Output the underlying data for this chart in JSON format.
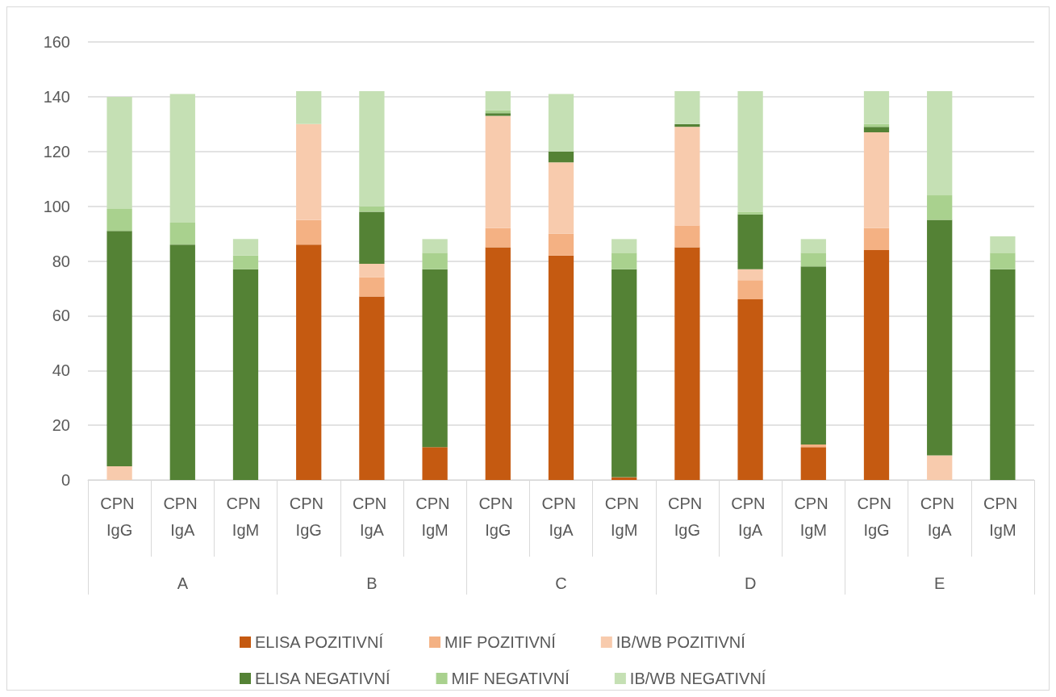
{
  "chart_data": {
    "type": "bar",
    "stacked": true,
    "categories": [
      "CPN IgG",
      "CPN IgA",
      "CPN IgM",
      "CPN IgG",
      "CPN IgA",
      "CPN IgM",
      "CPN IgG",
      "CPN IgA",
      "CPN IgM",
      "CPN IgG",
      "CPN IgA",
      "CPN IgM",
      "CPN IgG",
      "CPN IgA",
      "CPN IgM"
    ],
    "annotations": [
      "A",
      "B",
      "C",
      "D",
      "E"
    ],
    "series": [
      {
        "name": "ELISA POZITIVNÍ",
        "color": "#c55a11",
        "values": [
          0,
          0,
          0,
          86,
          67,
          12,
          85,
          82,
          1,
          85,
          66,
          12,
          84,
          0,
          0
        ]
      },
      {
        "name": "MIF POZITIVNÍ",
        "color": "#f4b183",
        "values": [
          0,
          0,
          0,
          9,
          7,
          0,
          7,
          8,
          0,
          8,
          7,
          1,
          8,
          0,
          0
        ]
      },
      {
        "name": "IB/WB POZITIVNÍ",
        "color": "#f8cbad",
        "values": [
          5,
          0,
          0,
          35,
          5,
          0,
          41,
          26,
          0,
          36,
          4,
          0,
          35,
          9,
          0
        ]
      },
      {
        "name": "ELISA NEGATIVNÍ",
        "color": "#548235",
        "values": [
          86,
          86,
          77,
          0,
          19,
          65,
          1,
          4,
          76,
          1,
          20,
          65,
          2,
          86,
          77
        ]
      },
      {
        "name": "MIF NEGATIVNÍ",
        "color": "#a9d18e",
        "values": [
          8,
          8,
          5,
          0,
          2,
          6,
          1,
          0,
          6,
          0,
          1,
          5,
          1,
          9,
          6
        ]
      },
      {
        "name": "IB/WB NEGATIVNÍ",
        "color": "#c5e0b4",
        "values": [
          41,
          47,
          6,
          12,
          42,
          5,
          7,
          21,
          5,
          12,
          44,
          5,
          12,
          38,
          6
        ]
      }
    ],
    "ylim": [
      0,
      160
    ],
    "yticks": [
      0,
      20,
      40,
      60,
      80,
      100,
      120,
      140,
      160
    ],
    "grid": "y",
    "legend": "bottom"
  }
}
